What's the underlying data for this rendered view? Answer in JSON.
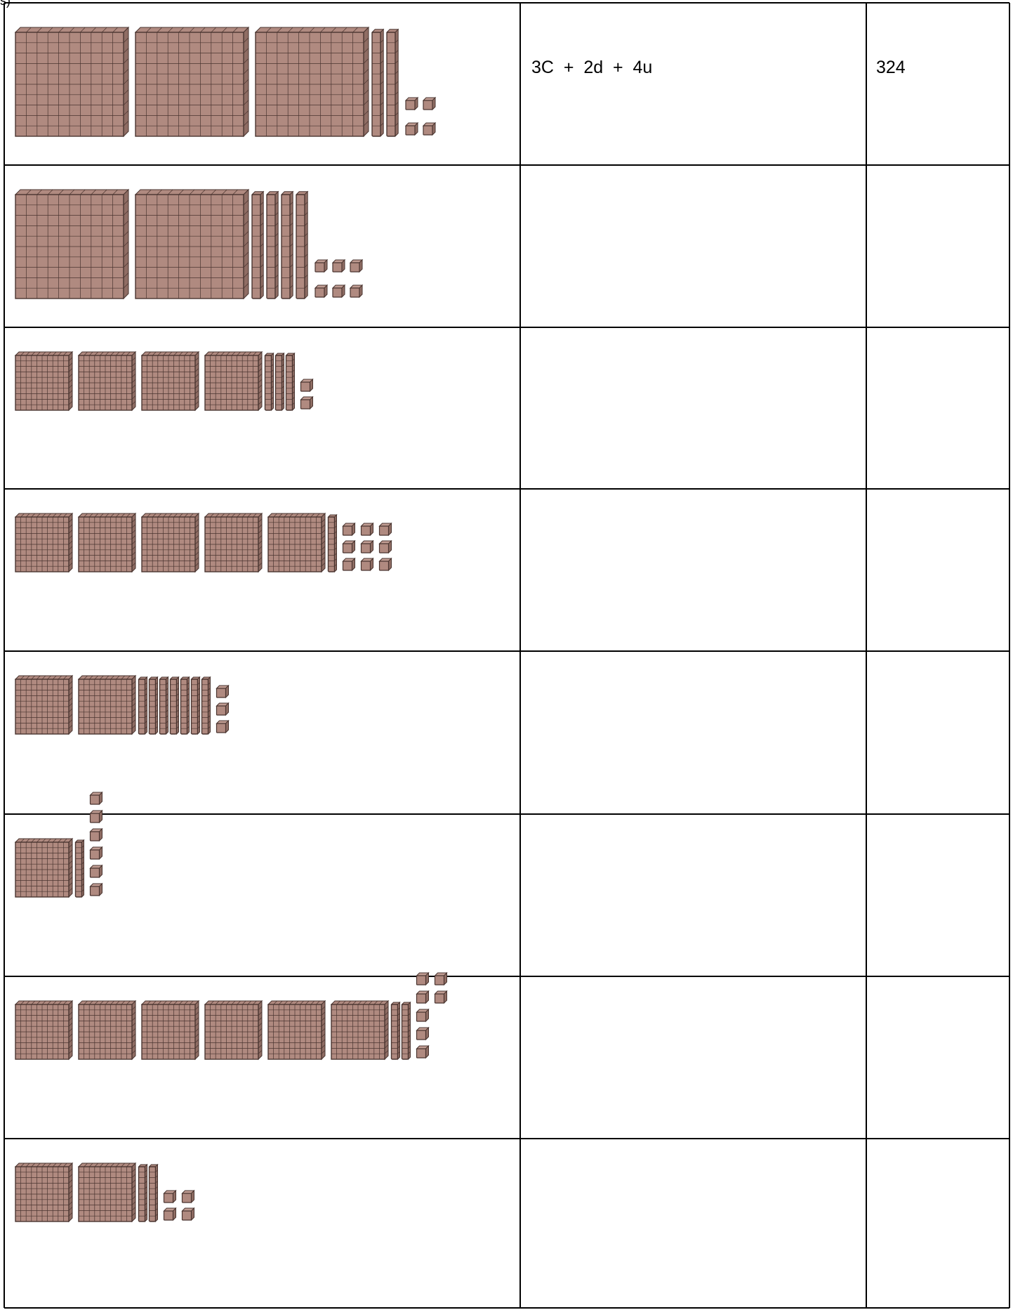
{
  "worksheet": {
    "header_fragment": "s)",
    "rows": [
      {
        "hundreds": 3,
        "tens": 2,
        "units": 4,
        "decomposition": "3C  +  2d  +  4u",
        "number": "324"
      },
      {
        "hundreds": 2,
        "tens": 4,
        "units": 6,
        "decomposition": "",
        "number": ""
      },
      {
        "hundreds": 4,
        "tens": 3,
        "units": 2,
        "decomposition": "",
        "number": ""
      },
      {
        "hundreds": 5,
        "tens": 1,
        "units": 9,
        "decomposition": "",
        "number": ""
      },
      {
        "hundreds": 2,
        "tens": 7,
        "units": 3,
        "decomposition": "",
        "number": ""
      },
      {
        "hundreds": 1,
        "tens": 1,
        "units": 6,
        "decomposition": "",
        "number": ""
      },
      {
        "hundreds": 6,
        "tens": 2,
        "units": 7,
        "decomposition": "",
        "number": ""
      },
      {
        "hundreds": 2,
        "tens": 2,
        "units": 4,
        "decomposition": "",
        "number": ""
      }
    ]
  },
  "colors": {
    "block_fill": "#b08a80",
    "block_edge": "#4a3530",
    "grid_line": "#4a3530",
    "table_border": "#000000"
  }
}
